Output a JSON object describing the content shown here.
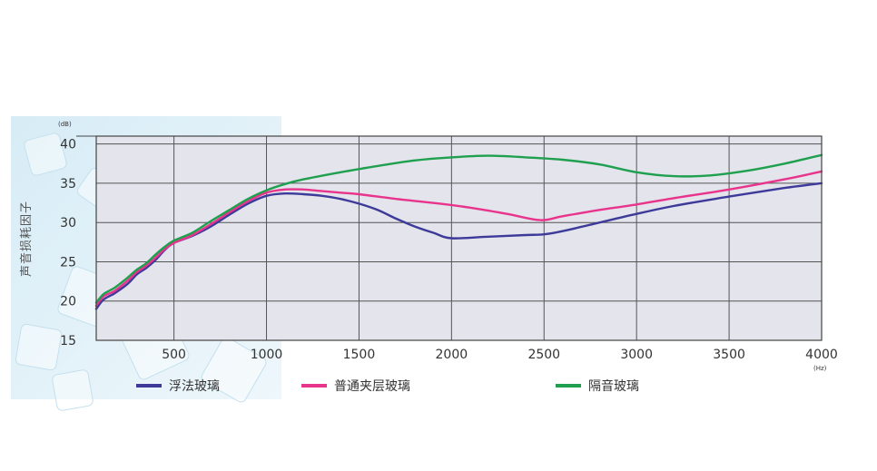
{
  "chart_data": {
    "type": "line",
    "ylabel": "声音损耗因子",
    "y_unit": "(dB)",
    "x_unit": "(Hz)",
    "xlim": [
      80,
      4000
    ],
    "ylim": [
      15,
      41
    ],
    "x_ticks": [
      500,
      1000,
      1500,
      2000,
      2500,
      3000,
      3500,
      4000
    ],
    "y_ticks": [
      15,
      20,
      25,
      30,
      35,
      40
    ],
    "grid": true,
    "legend_position": "bottom",
    "series": [
      {
        "name": "浮法玻璃",
        "color": "#3d3a9a",
        "points": [
          [
            80,
            19.0
          ],
          [
            120,
            20.2
          ],
          [
            180,
            21.0
          ],
          [
            250,
            22.2
          ],
          [
            300,
            23.4
          ],
          [
            350,
            24.2
          ],
          [
            400,
            25.2
          ],
          [
            450,
            26.5
          ],
          [
            500,
            27.4
          ],
          [
            600,
            28.3
          ],
          [
            700,
            29.5
          ],
          [
            800,
            31.0
          ],
          [
            900,
            32.4
          ],
          [
            1000,
            33.4
          ],
          [
            1100,
            33.7
          ],
          [
            1200,
            33.6
          ],
          [
            1300,
            33.4
          ],
          [
            1400,
            33.0
          ],
          [
            1500,
            32.4
          ],
          [
            1600,
            31.6
          ],
          [
            1700,
            30.5
          ],
          [
            1800,
            29.5
          ],
          [
            1900,
            28.7
          ],
          [
            2000,
            28.0
          ],
          [
            2200,
            28.2
          ],
          [
            2400,
            28.4
          ],
          [
            2500,
            28.5
          ],
          [
            2600,
            28.9
          ],
          [
            2800,
            30.0
          ],
          [
            3000,
            31.1
          ],
          [
            3200,
            32.1
          ],
          [
            3500,
            33.3
          ],
          [
            3800,
            34.4
          ],
          [
            4000,
            35.0
          ]
        ]
      },
      {
        "name": "普通夹层玻璃",
        "color": "#e8348c",
        "points": [
          [
            80,
            19.4
          ],
          [
            120,
            20.6
          ],
          [
            180,
            21.3
          ],
          [
            250,
            22.6
          ],
          [
            300,
            23.7
          ],
          [
            350,
            24.5
          ],
          [
            400,
            25.5
          ],
          [
            450,
            26.6
          ],
          [
            500,
            27.4
          ],
          [
            600,
            28.4
          ],
          [
            700,
            29.8
          ],
          [
            800,
            31.3
          ],
          [
            900,
            32.7
          ],
          [
            1000,
            33.8
          ],
          [
            1100,
            34.2
          ],
          [
            1200,
            34.2
          ],
          [
            1300,
            34.0
          ],
          [
            1400,
            33.8
          ],
          [
            1500,
            33.6
          ],
          [
            1700,
            33.0
          ],
          [
            1900,
            32.5
          ],
          [
            2100,
            31.9
          ],
          [
            2300,
            31.1
          ],
          [
            2480,
            30.3
          ],
          [
            2600,
            30.8
          ],
          [
            2800,
            31.6
          ],
          [
            3000,
            32.3
          ],
          [
            3200,
            33.1
          ],
          [
            3500,
            34.2
          ],
          [
            3800,
            35.5
          ],
          [
            4000,
            36.5
          ]
        ]
      },
      {
        "name": "隔音玻璃",
        "color": "#1fa04f",
        "points": [
          [
            80,
            19.8
          ],
          [
            120,
            20.9
          ],
          [
            180,
            21.7
          ],
          [
            250,
            23.0
          ],
          [
            300,
            24.0
          ],
          [
            350,
            24.8
          ],
          [
            400,
            25.9
          ],
          [
            450,
            26.9
          ],
          [
            500,
            27.7
          ],
          [
            600,
            28.7
          ],
          [
            700,
            30.2
          ],
          [
            800,
            31.6
          ],
          [
            900,
            33.0
          ],
          [
            1000,
            34.1
          ],
          [
            1100,
            34.9
          ],
          [
            1200,
            35.5
          ],
          [
            1400,
            36.4
          ],
          [
            1600,
            37.2
          ],
          [
            1800,
            37.9
          ],
          [
            2000,
            38.3
          ],
          [
            2200,
            38.5
          ],
          [
            2400,
            38.3
          ],
          [
            2600,
            38.0
          ],
          [
            2800,
            37.4
          ],
          [
            3000,
            36.4
          ],
          [
            3200,
            35.9
          ],
          [
            3400,
            36.0
          ],
          [
            3600,
            36.6
          ],
          [
            3800,
            37.5
          ],
          [
            4000,
            38.6
          ]
        ]
      }
    ]
  }
}
